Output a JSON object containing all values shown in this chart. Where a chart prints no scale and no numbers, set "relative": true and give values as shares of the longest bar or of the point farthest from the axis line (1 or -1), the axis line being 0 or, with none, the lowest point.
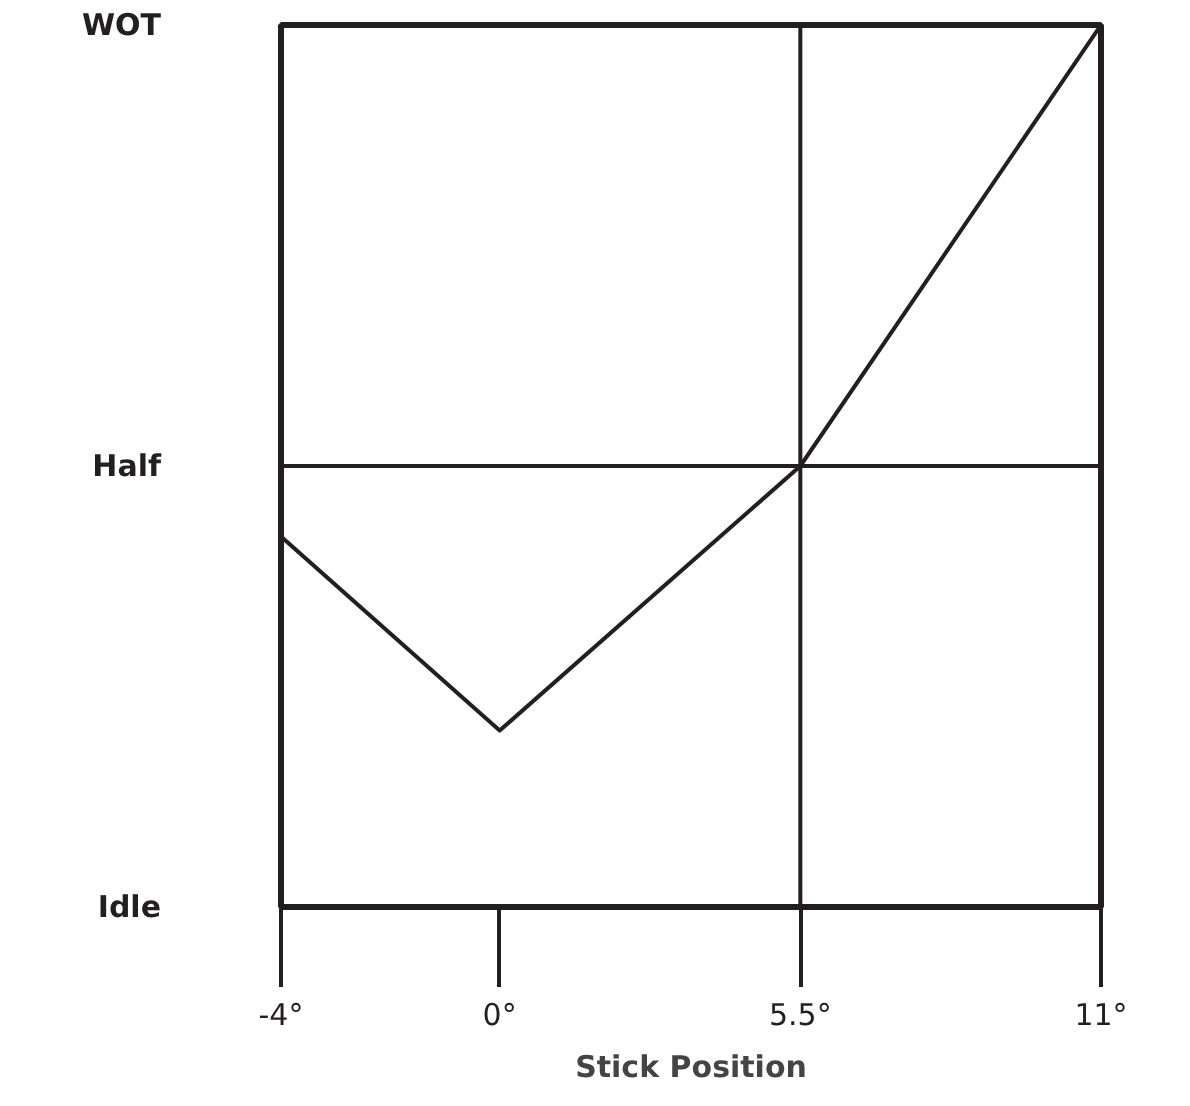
{
  "chart_data": {
    "type": "line",
    "xlabel": "Stick Position",
    "x": [
      -4,
      0,
      5.5,
      11
    ],
    "series": [
      {
        "color": "#231f20",
        "values": [
          0.42,
          0.2,
          0.5,
          1
        ]
      }
    ],
    "relative": true,
    "annotations": [
      "WOT",
      "Half",
      "Idle"
    ],
    "xlim": [
      -4,
      11
    ],
    "xticks": [
      {
        "value": -4,
        "label": "-4°"
      },
      {
        "value": 0,
        "label": "0°"
      },
      {
        "value": 5.5,
        "label": "5.5°"
      },
      {
        "value": 11,
        "label": "11°"
      }
    ],
    "ref_lines": [
      {
        "axis": "x",
        "value": 5.5,
        "color": "#231f20"
      },
      {
        "axis": "y",
        "value": 0.5,
        "color": "#231f20"
      }
    ],
    "grid": false,
    "marker": "none",
    "line_style": "solid"
  }
}
